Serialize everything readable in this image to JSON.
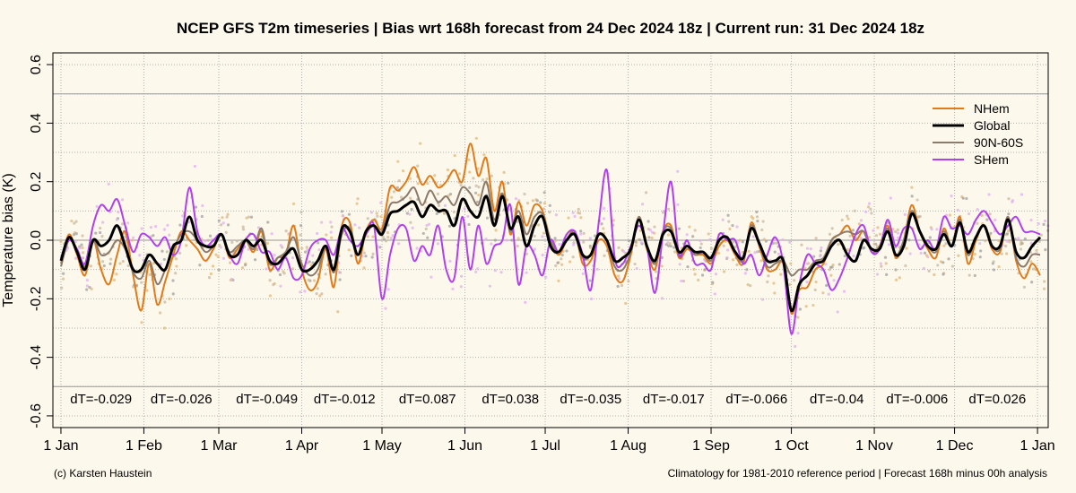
{
  "chart_data": {
    "type": "line",
    "title": "NCEP GFS T2m timeseries | Bias wrt 168h forecast from 24 Dec 2024 18z | Current run: 31 Dec 2024 18z",
    "ylabel": "Temperature bias (K)",
    "xlabel": "",
    "ylim": [
      -0.64,
      0.64
    ],
    "xlim": [
      -3,
      369
    ],
    "yticks": [
      -0.6,
      -0.4,
      -0.2,
      0.0,
      0.2,
      0.4,
      0.6
    ],
    "ytick_labels": [
      "-0.6",
      "-0.4",
      "-0.2",
      "0.0",
      "0.2",
      "0.4",
      "0.6"
    ],
    "reference_lines": [
      0.5,
      -0.5,
      0.0
    ],
    "xticks": [
      {
        "day": 0,
        "label": "1 Jan"
      },
      {
        "day": 31,
        "label": "1 Feb"
      },
      {
        "day": 59,
        "label": "1 Mar"
      },
      {
        "day": 90,
        "label": "1 Apr"
      },
      {
        "day": 120,
        "label": "1 May"
      },
      {
        "day": 151,
        "label": "1 Jun"
      },
      {
        "day": 181,
        "label": "1 Jul"
      },
      {
        "day": 212,
        "label": "1 Aug"
      },
      {
        "day": 243,
        "label": "1 Sep"
      },
      {
        "day": 273,
        "label": "1 Oct"
      },
      {
        "day": 304,
        "label": "1 Nov"
      },
      {
        "day": 334,
        "label": "1 Dec"
      },
      {
        "day": 365,
        "label": "1 Jan"
      }
    ],
    "grid": true,
    "legend_position": "top-right",
    "monthly_dT": [
      {
        "day": 15,
        "label": "dT=-0.029"
      },
      {
        "day": 45,
        "label": "dT=-0.026"
      },
      {
        "day": 77,
        "label": "dT=-0.049"
      },
      {
        "day": 106,
        "label": "dT=-0.012"
      },
      {
        "day": 137,
        "label": "dT=0.087"
      },
      {
        "day": 168,
        "label": "dT=0.038"
      },
      {
        "day": 198,
        "label": "dT=-0.035"
      },
      {
        "day": 229,
        "label": "dT=-0.017"
      },
      {
        "day": 260,
        "label": "dT=-0.066"
      },
      {
        "day": 290,
        "label": "dT=-0.04"
      },
      {
        "day": 320,
        "label": "dT=-0.006"
      },
      {
        "day": 350,
        "label": "dT=0.026"
      }
    ],
    "series": [
      {
        "name": "NHem",
        "color": "#e07b1a",
        "dot_color": "#e0b87a",
        "width": 2,
        "x": [
          0,
          3,
          6,
          9,
          12,
          15,
          18,
          21,
          24,
          27,
          30,
          33,
          36,
          39,
          42,
          45,
          48,
          51,
          54,
          57,
          60,
          63,
          66,
          69,
          72,
          75,
          78,
          81,
          84,
          87,
          90,
          93,
          96,
          99,
          102,
          105,
          108,
          111,
          114,
          117,
          120,
          123,
          126,
          129,
          132,
          135,
          138,
          141,
          144,
          147,
          150,
          153,
          156,
          159,
          162,
          165,
          168,
          171,
          174,
          177,
          180,
          183,
          186,
          189,
          192,
          195,
          198,
          201,
          204,
          207,
          210,
          213,
          216,
          219,
          222,
          225,
          228,
          231,
          234,
          237,
          240,
          243,
          246,
          249,
          252,
          255,
          258,
          261,
          264,
          267,
          270,
          273,
          276,
          279,
          282,
          285,
          288,
          291,
          294,
          297,
          300,
          303,
          306,
          309,
          312,
          315,
          318,
          321,
          324,
          327,
          330,
          333,
          336,
          339,
          342,
          345,
          348,
          351,
          354,
          357,
          360,
          363,
          366
        ],
        "y": [
          -0.08,
          0.02,
          -0.05,
          -0.12,
          0.0,
          -0.1,
          -0.15,
          -0.05,
          0.03,
          -0.12,
          -0.24,
          -0.08,
          -0.22,
          -0.14,
          -0.05,
          0.03,
          0.0,
          -0.03,
          -0.07,
          -0.03,
          0.02,
          -0.06,
          -0.03,
          0.0,
          -0.04,
          0.03,
          -0.1,
          -0.06,
          -0.05,
          0.05,
          -0.1,
          -0.17,
          -0.14,
          -0.03,
          -0.16,
          0.05,
          0.06,
          -0.08,
          0.03,
          0.07,
          0.04,
          0.18,
          0.17,
          0.2,
          0.25,
          0.19,
          0.22,
          0.18,
          0.2,
          0.24,
          0.2,
          0.33,
          0.22,
          0.28,
          0.1,
          0.2,
          0.02,
          0.13,
          0.05,
          0.12,
          0.1,
          0.0,
          -0.05,
          0.0,
          0.03,
          -0.08,
          -0.07,
          0.0,
          -0.02,
          -0.12,
          -0.14,
          -0.05,
          0.08,
          -0.03,
          -0.1,
          0.03,
          0.05,
          -0.06,
          -0.03,
          -0.05,
          -0.05,
          -0.08,
          -0.02,
          0.0,
          -0.05,
          -0.08,
          0.06,
          -0.02,
          -0.1,
          -0.1,
          -0.08,
          -0.25,
          -0.17,
          -0.16,
          -0.1,
          -0.08,
          0.0,
          0.02,
          0.05,
          0.0,
          0.03,
          -0.04,
          -0.02,
          0.05,
          -0.06,
          0.0,
          0.12,
          0.03,
          -0.03,
          -0.06,
          0.04,
          -0.02,
          0.08,
          -0.08,
          0.0,
          0.05,
          -0.03,
          -0.04,
          0.08,
          -0.07,
          -0.13,
          -0.08,
          -0.12
        ]
      },
      {
        "name": "Global",
        "color": "#000000",
        "dot_color": "#a0a0a0",
        "width": 3,
        "x": [
          0,
          3,
          6,
          9,
          12,
          15,
          18,
          21,
          24,
          27,
          30,
          33,
          36,
          39,
          42,
          45,
          48,
          51,
          54,
          57,
          60,
          63,
          66,
          69,
          72,
          75,
          78,
          81,
          84,
          87,
          90,
          93,
          96,
          99,
          102,
          105,
          108,
          111,
          114,
          117,
          120,
          123,
          126,
          129,
          132,
          135,
          138,
          141,
          144,
          147,
          150,
          153,
          156,
          159,
          162,
          165,
          168,
          171,
          174,
          177,
          180,
          183,
          186,
          189,
          192,
          195,
          198,
          201,
          204,
          207,
          210,
          213,
          216,
          219,
          222,
          225,
          228,
          231,
          234,
          237,
          240,
          243,
          246,
          249,
          252,
          255,
          258,
          261,
          264,
          267,
          270,
          273,
          276,
          279,
          282,
          285,
          288,
          291,
          294,
          297,
          300,
          303,
          306,
          309,
          312,
          315,
          318,
          321,
          324,
          327,
          330,
          333,
          336,
          339,
          342,
          345,
          348,
          351,
          354,
          357,
          360,
          363,
          366
        ],
        "y": [
          -0.07,
          0.01,
          -0.04,
          -0.1,
          0.0,
          -0.02,
          0.0,
          0.05,
          -0.02,
          -0.1,
          -0.1,
          -0.05,
          -0.08,
          -0.1,
          -0.02,
          0.0,
          0.08,
          0.0,
          -0.02,
          -0.02,
          0.02,
          -0.05,
          -0.05,
          0.0,
          -0.02,
          0.0,
          -0.07,
          -0.08,
          -0.05,
          -0.03,
          -0.1,
          -0.1,
          -0.07,
          -0.02,
          -0.1,
          0.04,
          0.03,
          -0.05,
          0.03,
          0.05,
          0.02,
          0.09,
          0.1,
          0.12,
          0.13,
          0.08,
          0.12,
          0.1,
          0.1,
          0.05,
          0.14,
          0.1,
          0.08,
          0.15,
          0.05,
          0.15,
          0.04,
          0.08,
          -0.02,
          0.05,
          0.08,
          -0.02,
          -0.04,
          0.0,
          0.02,
          -0.05,
          -0.05,
          0.02,
          0.0,
          -0.07,
          -0.06,
          -0.03,
          0.07,
          -0.02,
          -0.07,
          0.02,
          0.03,
          -0.04,
          -0.02,
          -0.04,
          -0.04,
          -0.06,
          0.0,
          0.01,
          -0.04,
          -0.06,
          0.04,
          -0.01,
          -0.07,
          -0.07,
          -0.07,
          -0.24,
          -0.15,
          -0.12,
          -0.08,
          -0.07,
          -0.02,
          0.0,
          -0.05,
          -0.07,
          0.0,
          -0.03,
          -0.03,
          0.03,
          -0.05,
          -0.02,
          0.09,
          0.03,
          -0.02,
          -0.03,
          0.02,
          -0.02,
          0.06,
          -0.04,
          0.01,
          0.05,
          -0.02,
          -0.02,
          0.07,
          -0.04,
          -0.06,
          -0.02,
          0.01
        ]
      },
      {
        "name": "90N-60S",
        "color": "#8c7b6b",
        "dot_color": "#c8b8a0",
        "width": 2,
        "x": [
          0,
          3,
          6,
          9,
          12,
          15,
          18,
          21,
          24,
          27,
          30,
          33,
          36,
          39,
          42,
          45,
          48,
          51,
          54,
          57,
          60,
          63,
          66,
          69,
          72,
          75,
          78,
          81,
          84,
          87,
          90,
          93,
          96,
          99,
          102,
          105,
          108,
          111,
          114,
          117,
          120,
          123,
          126,
          129,
          132,
          135,
          138,
          141,
          144,
          147,
          150,
          153,
          156,
          159,
          162,
          165,
          168,
          171,
          174,
          177,
          180,
          183,
          186,
          189,
          192,
          195,
          198,
          201,
          204,
          207,
          210,
          213,
          216,
          219,
          222,
          225,
          228,
          231,
          234,
          237,
          240,
          243,
          246,
          249,
          252,
          255,
          258,
          261,
          264,
          267,
          270,
          273,
          276,
          279,
          282,
          285,
          288,
          291,
          294,
          297,
          300,
          303,
          306,
          309,
          312,
          315,
          318,
          321,
          324,
          327,
          330,
          333,
          336,
          339,
          342,
          345,
          348,
          351,
          354,
          357,
          360,
          363,
          366
        ],
        "y": [
          -0.09,
          0.0,
          -0.03,
          -0.09,
          0.0,
          -0.05,
          -0.04,
          0.0,
          -0.03,
          -0.11,
          -0.13,
          -0.07,
          -0.15,
          -0.1,
          -0.03,
          0.02,
          0.03,
          0.0,
          -0.04,
          -0.02,
          0.02,
          -0.04,
          -0.02,
          0.0,
          -0.03,
          0.04,
          -0.08,
          -0.06,
          -0.04,
          0.01,
          -0.08,
          -0.12,
          -0.1,
          -0.02,
          -0.11,
          0.02,
          0.04,
          -0.05,
          0.02,
          0.05,
          0.03,
          0.12,
          0.13,
          0.15,
          0.18,
          0.12,
          0.17,
          0.13,
          0.15,
          0.12,
          0.18,
          0.16,
          0.12,
          0.2,
          0.07,
          0.16,
          0.03,
          0.1,
          0.02,
          0.08,
          0.09,
          0.0,
          -0.04,
          0.0,
          0.03,
          -0.06,
          -0.05,
          0.02,
          0.0,
          -0.09,
          -0.1,
          -0.04,
          0.08,
          -0.02,
          -0.08,
          0.03,
          0.04,
          -0.05,
          -0.02,
          -0.05,
          -0.04,
          -0.07,
          0.0,
          0.01,
          -0.04,
          -0.07,
          0.05,
          -0.01,
          -0.09,
          -0.08,
          -0.07,
          -0.12,
          -0.1,
          -0.1,
          -0.07,
          -0.06,
          0.0,
          0.02,
          0.03,
          0.02,
          0.03,
          -0.04,
          -0.02,
          0.04,
          -0.05,
          0.0,
          0.1,
          0.03,
          -0.02,
          -0.04,
          0.03,
          -0.02,
          0.07,
          -0.05,
          0.01,
          0.05,
          -0.02,
          -0.03,
          0.08,
          -0.06,
          -0.09,
          -0.05,
          -0.05
        ]
      },
      {
        "name": "SHem",
        "color": "#b040ee",
        "dot_color": "#e0b0f0",
        "width": 2,
        "x": [
          0,
          3,
          6,
          9,
          12,
          15,
          18,
          21,
          24,
          27,
          30,
          33,
          36,
          39,
          42,
          45,
          48,
          51,
          54,
          57,
          60,
          63,
          66,
          69,
          72,
          75,
          78,
          81,
          84,
          87,
          90,
          93,
          96,
          99,
          102,
          105,
          108,
          111,
          114,
          117,
          120,
          123,
          126,
          129,
          132,
          135,
          138,
          141,
          144,
          147,
          150,
          153,
          156,
          159,
          162,
          165,
          168,
          171,
          174,
          177,
          180,
          183,
          186,
          189,
          192,
          195,
          198,
          201,
          204,
          207,
          210,
          213,
          216,
          219,
          222,
          225,
          228,
          231,
          234,
          237,
          240,
          243,
          246,
          249,
          252,
          255,
          258,
          261,
          264,
          267,
          270,
          273,
          276,
          279,
          282,
          285,
          288,
          291,
          294,
          297,
          300,
          303,
          306,
          309,
          312,
          315,
          318,
          321,
          324,
          327,
          330,
          333,
          336,
          339,
          342,
          345,
          348,
          351,
          354,
          357,
          360,
          363,
          366
        ],
        "y": [
          -0.06,
          0.0,
          -0.03,
          -0.08,
          0.05,
          0.12,
          0.1,
          0.14,
          0.05,
          -0.04,
          0.02,
          0.01,
          -0.02,
          0.01,
          -0.05,
          0.0,
          0.18,
          0.03,
          -0.02,
          0.0,
          0.02,
          -0.05,
          -0.08,
          0.0,
          0.02,
          -0.04,
          -0.04,
          -0.1,
          -0.06,
          -0.13,
          -0.12,
          -0.03,
          0.0,
          0.0,
          -0.05,
          0.04,
          0.0,
          -0.02,
          0.02,
          0.05,
          -0.2,
          -0.05,
          0.04,
          0.04,
          -0.07,
          -0.02,
          -0.05,
          0.05,
          -0.1,
          -0.13,
          0.08,
          -0.1,
          0.05,
          -0.08,
          -0.02,
          0.0,
          0.12,
          -0.15,
          -0.02,
          -0.05,
          -0.12,
          0.0,
          -0.04,
          0.02,
          0.03,
          -0.05,
          -0.17,
          0.06,
          0.24,
          -0.06,
          -0.08,
          -0.02,
          0.05,
          -0.02,
          -0.18,
          0.02,
          0.2,
          -0.05,
          0.0,
          -0.08,
          -0.08,
          -0.1,
          0.02,
          0.0,
          0.0,
          -0.08,
          -0.05,
          -0.12,
          -0.05,
          0.01,
          -0.08,
          -0.32,
          -0.15,
          -0.05,
          -0.08,
          -0.1,
          -0.17,
          -0.13,
          -0.06,
          0.02,
          0.05,
          -0.04,
          -0.03,
          0.07,
          -0.02,
          0.04,
          0.04,
          -0.03,
          0.0,
          -0.03,
          0.08,
          0.04,
          0.05,
          0.02,
          0.07,
          0.1,
          0.06,
          0.02,
          0.05,
          0.08,
          0.03,
          0.03,
          0.02
        ]
      }
    ]
  },
  "footer": {
    "left": "(c) Karsten Haustein",
    "right": "Climatology for 1981-2010 reference period | Forecast 168h minus 00h analysis"
  }
}
